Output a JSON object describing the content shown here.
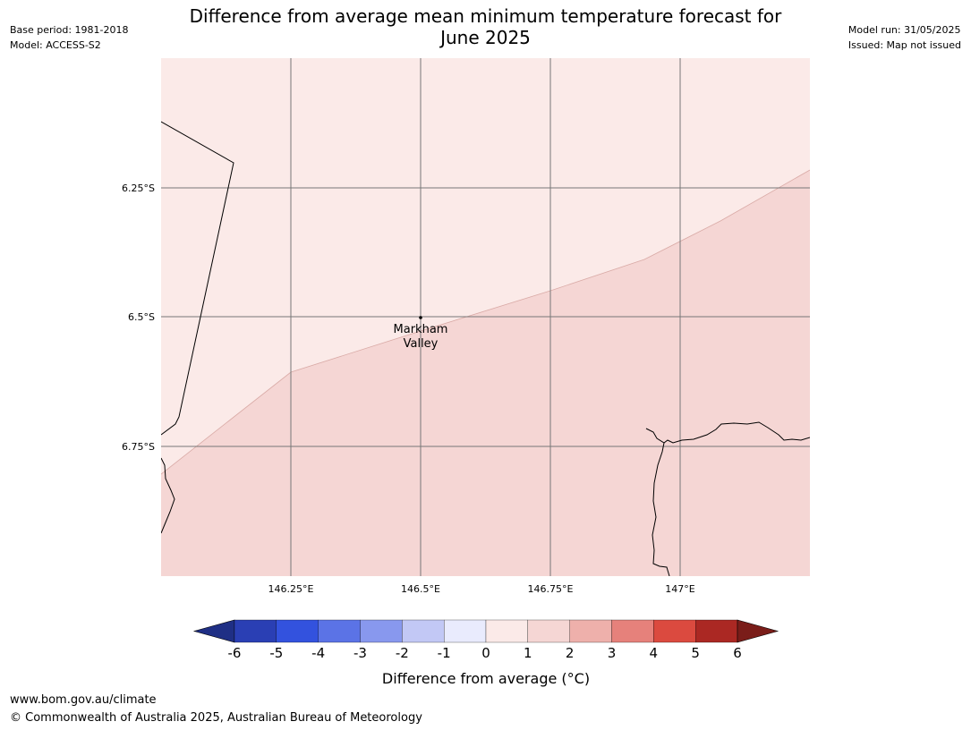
{
  "header": {
    "title_line1": "Difference from average mean minimum temperature forecast for",
    "title_line2": "June 2025",
    "base_period": "Base period: 1981-2018",
    "model": "Model: ACCESS-S2",
    "model_run": "Model run: 31/05/2025",
    "issued": "Issued: Map not issued"
  },
  "map": {
    "lat_labels": [
      "6.25°S",
      "6.5°S",
      "6.75°S"
    ],
    "lon_labels": [
      "146.25°E",
      "146.5°E",
      "146.75°E",
      "147°E"
    ],
    "place": {
      "name_line1": "Markham",
      "name_line2": "Valley"
    },
    "fill_colors": {
      "band_0_1": "#fbeae8",
      "band_1_2": "#f5d6d4"
    }
  },
  "legend": {
    "ticks": [
      "-6",
      "-5",
      "-4",
      "-3",
      "-2",
      "-1",
      "0",
      "1",
      "2",
      "3",
      "4",
      "5",
      "6"
    ],
    "colors": [
      "#1f2f85",
      "#2a3fb4",
      "#3352de",
      "#5b73e6",
      "#8898ee",
      "#c2c8f5",
      "#e9ebfd",
      "#fbeae8",
      "#f5d6d4",
      "#eeb0ab",
      "#e6817b",
      "#db4a3f",
      "#ab2823",
      "#7a1d19"
    ],
    "label": "Difference from average (°C)"
  },
  "footer": {
    "url": "www.bom.gov.au/climate",
    "copyright": "© Commonwealth of Australia 2025, Australian Bureau of Meteorology"
  }
}
